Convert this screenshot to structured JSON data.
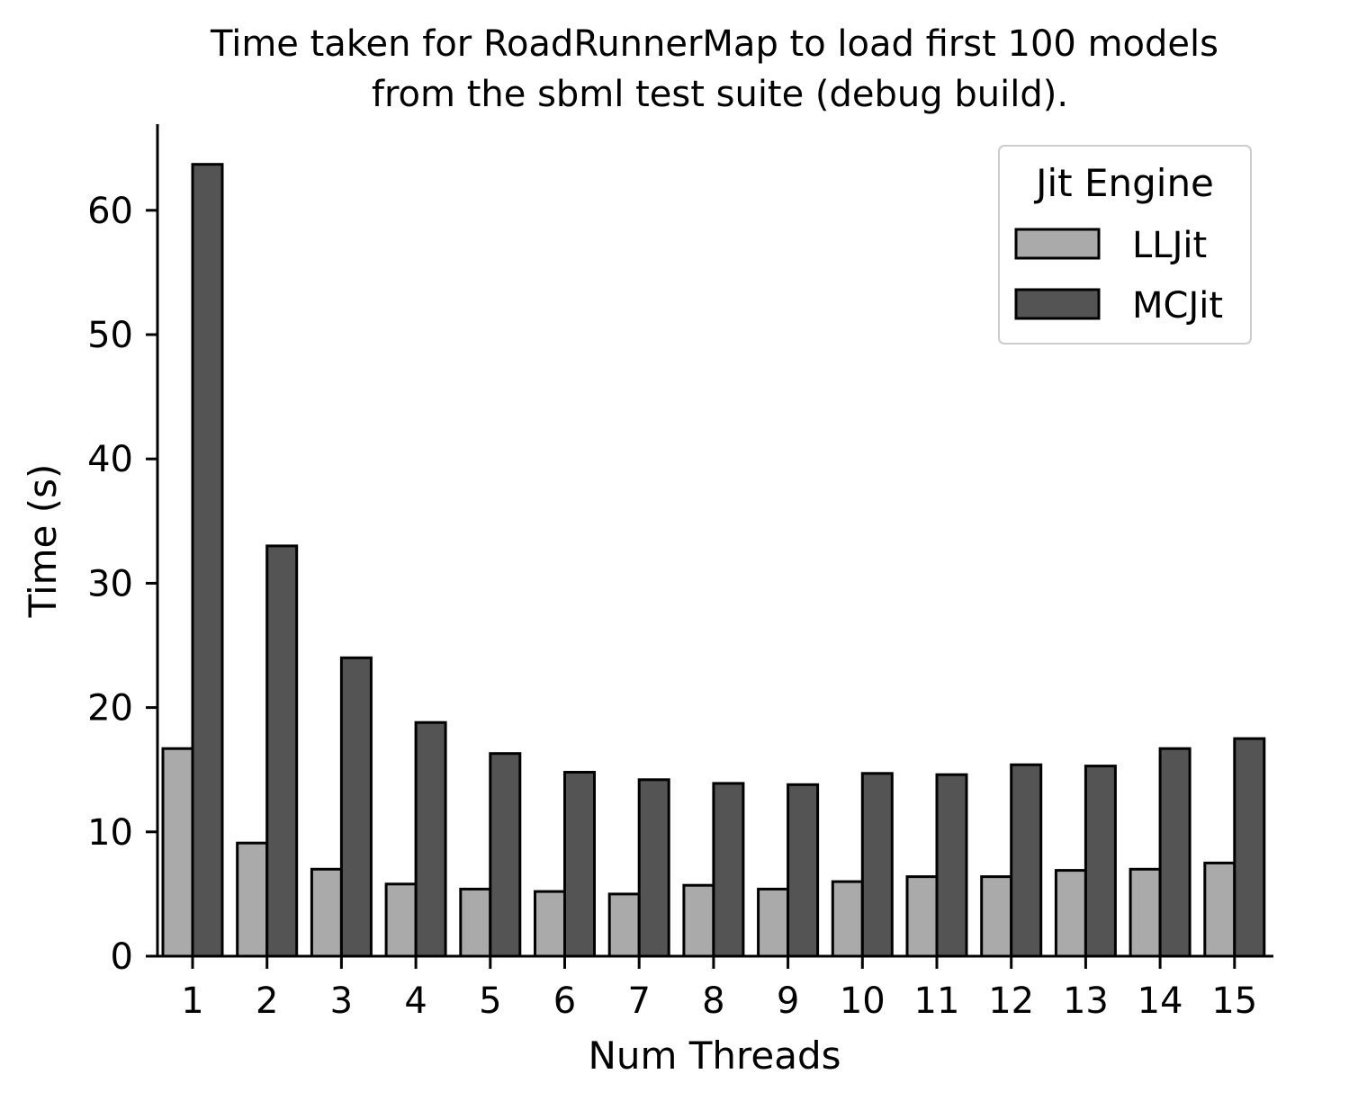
{
  "chart_data": {
    "type": "bar",
    "title": "Time taken for RoadRunnerMap to load first 100 models",
    "subtitle": "from the sbml test suite (debug build).",
    "xlabel": "Num Threads",
    "ylabel": "Time (s)",
    "categories": [
      "1",
      "2",
      "3",
      "4",
      "5",
      "6",
      "7",
      "8",
      "9",
      "10",
      "11",
      "12",
      "13",
      "14",
      "15"
    ],
    "series": [
      {
        "name": "LLJit",
        "color": "#aaaaaa",
        "values": [
          16.7,
          9.1,
          7.0,
          5.8,
          5.4,
          5.2,
          5.0,
          5.7,
          5.4,
          6.0,
          6.4,
          6.4,
          6.9,
          7.0,
          7.5
        ]
      },
      {
        "name": "MCJit",
        "color": "#545454",
        "values": [
          63.7,
          33.0,
          24.0,
          18.8,
          16.3,
          14.8,
          14.2,
          13.9,
          13.8,
          14.7,
          14.6,
          15.4,
          15.3,
          16.7,
          17.5
        ]
      }
    ],
    "ylim": [
      0,
      67
    ],
    "yticks": [
      0,
      10,
      20,
      30,
      40,
      50,
      60
    ],
    "legend": {
      "title": "Jit Engine",
      "placement": "top-right"
    },
    "grid": false
  }
}
